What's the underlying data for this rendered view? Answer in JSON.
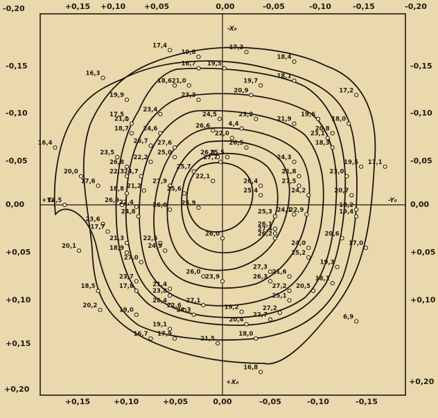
{
  "figure": {
    "x_ticks": [
      "+0,15",
      "+0,10",
      "+0,05",
      "0,00",
      "-0,05",
      "-0,10",
      "-0,15",
      "-0,20"
    ],
    "y_ticks": [
      "-0,20",
      "-0,15",
      "-0,10",
      "-0,05",
      "0,00",
      "+0,05",
      "+0,10",
      "+0,15",
      "+0,20"
    ],
    "axis_labels": {
      "x_top": "-X₀",
      "x_bottom": "+X₀",
      "y_left": "+Y₀",
      "y_right": "-Y₀"
    },
    "points": [
      {
        "label": "17,4",
        "x": 0.055,
        "y": -0.162
      },
      {
        "label": "19,8",
        "x": 0.025,
        "y": -0.155
      },
      {
        "label": "17,3",
        "x": -0.025,
        "y": -0.16
      },
      {
        "label": "18,4",
        "x": -0.075,
        "y": -0.15
      },
      {
        "label": "16,3",
        "x": 0.125,
        "y": -0.133
      },
      {
        "label": "16,7",
        "x": 0.025,
        "y": -0.143
      },
      {
        "label": "19,5",
        "x": -0.002,
        "y": -0.143
      },
      {
        "label": "19,7",
        "x": -0.04,
        "y": -0.125
      },
      {
        "label": "18,1",
        "x": -0.075,
        "y": -0.13
      },
      {
        "label": "17,2",
        "x": -0.14,
        "y": -0.115
      },
      {
        "label": "18,6",
        "x": 0.05,
        "y": -0.125
      },
      {
        "label": "21,0",
        "x": 0.035,
        "y": -0.125
      },
      {
        "label": "23,3",
        "x": 0.025,
        "y": -0.11
      },
      {
        "label": "20,9",
        "x": -0.03,
        "y": -0.115
      },
      {
        "label": "19,9",
        "x": 0.1,
        "y": -0.11
      },
      {
        "label": "17,5",
        "x": 0.1,
        "y": -0.09
      },
      {
        "label": "21,1",
        "x": 0.095,
        "y": -0.085
      },
      {
        "label": "23,4",
        "x": 0.065,
        "y": -0.095
      },
      {
        "label": "24,5",
        "x": 0.003,
        "y": -0.09
      },
      {
        "label": "23,2",
        "x": -0.035,
        "y": -0.09
      },
      {
        "label": "21,9",
        "x": -0.075,
        "y": -0.085
      },
      {
        "label": "19,6",
        "x": -0.1,
        "y": -0.09
      },
      {
        "label": "18,0",
        "x": -0.132,
        "y": -0.085
      },
      {
        "label": "18,7",
        "x": 0.095,
        "y": -0.075
      },
      {
        "label": "24,6",
        "x": 0.065,
        "y": -0.075
      },
      {
        "label": "26,6",
        "x": 0.01,
        "y": -0.078
      },
      {
        "label": "4,4",
        "x": -0.02,
        "y": -0.08
      },
      {
        "label": "20,8",
        "x": -0.115,
        "y": -0.075
      },
      {
        "label": "23,1",
        "x": -0.11,
        "y": -0.07
      },
      {
        "label": "26,7",
        "x": 0.075,
        "y": -0.062
      },
      {
        "label": "27,6",
        "x": 0.05,
        "y": -0.06
      },
      {
        "label": "25,0",
        "x": 0.05,
        "y": -0.05
      },
      {
        "label": "22,0",
        "x": -0.01,
        "y": -0.07
      },
      {
        "label": "26,5",
        "x": -0.025,
        "y": -0.06
      },
      {
        "label": "18,3",
        "x": -0.115,
        "y": -0.06
      },
      {
        "label": "26,8",
        "x": 0.005,
        "y": -0.05
      },
      {
        "label": "27,7",
        "x": 0.002,
        "y": -0.045
      },
      {
        "label": "25,5",
        "x": -0.005,
        "y": -0.05
      },
      {
        "label": "24,3",
        "x": -0.075,
        "y": -0.045
      },
      {
        "label": "16,4",
        "x": 0.175,
        "y": -0.06
      },
      {
        "label": "23,5",
        "x": 0.11,
        "y": -0.05
      },
      {
        "label": "22,2",
        "x": 0.075,
        "y": -0.045
      },
      {
        "label": "26,8",
        "x": 0.1,
        "y": -0.04
      },
      {
        "label": "22,3",
        "x": 0.1,
        "y": -0.03
      },
      {
        "label": "24,7",
        "x": 0.085,
        "y": -0.03
      },
      {
        "label": "25,7",
        "x": 0.03,
        "y": -0.035
      },
      {
        "label": "22,1",
        "x": 0.01,
        "y": -0.025
      },
      {
        "label": "19,5",
        "x": -0.145,
        "y": -0.04
      },
      {
        "label": "17,1",
        "x": -0.17,
        "y": -0.04
      },
      {
        "label": "20,0",
        "x": 0.148,
        "y": -0.03
      },
      {
        "label": "17,6",
        "x": 0.13,
        "y": -0.02
      },
      {
        "label": "27,9",
        "x": 0.055,
        "y": -0.02
      },
      {
        "label": "21,8",
        "x": -0.08,
        "y": -0.03
      },
      {
        "label": "23,0",
        "x": -0.13,
        "y": -0.03
      },
      {
        "label": "26,4",
        "x": -0.04,
        "y": -0.02
      },
      {
        "label": "27,5",
        "x": -0.08,
        "y": -0.02
      },
      {
        "label": "18,8",
        "x": 0.1,
        "y": -0.012
      },
      {
        "label": "21,2",
        "x": 0.082,
        "y": -0.015
      },
      {
        "label": "25,6",
        "x": 0.04,
        "y": -0.012
      },
      {
        "label": "25,4",
        "x": -0.04,
        "y": -0.01
      },
      {
        "label": "24,2",
        "x": -0.09,
        "y": -0.01
      },
      {
        "label": "20,7",
        "x": -0.135,
        "y": -0.01
      },
      {
        "label": "16,5",
        "x": 0.165,
        "y": 0.0
      },
      {
        "label": "26,9",
        "x": 0.105,
        "y": 0.0
      },
      {
        "label": "22,4",
        "x": 0.09,
        "y": 0.002
      },
      {
        "label": "24,8",
        "x": 0.088,
        "y": 0.012
      },
      {
        "label": "26,0",
        "x": 0.055,
        "y": 0.005
      },
      {
        "label": "25,9",
        "x": 0.025,
        "y": 0.003
      },
      {
        "label": "18,2",
        "x": -0.14,
        "y": 0.005
      },
      {
        "label": "19,4",
        "x": -0.14,
        "y": 0.012
      },
      {
        "label": "25,3",
        "x": -0.055,
        "y": 0.012
      },
      {
        "label": "24,1",
        "x": -0.075,
        "y": 0.01
      },
      {
        "label": "22,9",
        "x": -0.088,
        "y": 0.01
      },
      {
        "label": "23,6",
        "x": 0.125,
        "y": 0.02
      },
      {
        "label": "17,7",
        "x": 0.12,
        "y": 0.028
      },
      {
        "label": "26,1",
        "x": -0.055,
        "y": 0.025
      },
      {
        "label": "27,4",
        "x": -0.055,
        "y": 0.03
      },
      {
        "label": "26,0",
        "x": 0.0,
        "y": 0.035
      },
      {
        "label": "26,2",
        "x": -0.055,
        "y": 0.035
      },
      {
        "label": "20,6",
        "x": -0.125,
        "y": 0.035
      },
      {
        "label": "21,3",
        "x": 0.1,
        "y": 0.04
      },
      {
        "label": "22,5",
        "x": 0.065,
        "y": 0.04
      },
      {
        "label": "24,9",
        "x": 0.06,
        "y": 0.048
      },
      {
        "label": "17,0",
        "x": -0.15,
        "y": 0.045
      },
      {
        "label": "20,1",
        "x": 0.15,
        "y": 0.048
      },
      {
        "label": "18,9",
        "x": 0.1,
        "y": 0.05
      },
      {
        "label": "27,0",
        "x": 0.085,
        "y": 0.06
      },
      {
        "label": "24,0",
        "x": -0.09,
        "y": 0.045
      },
      {
        "label": "25,2",
        "x": -0.09,
        "y": 0.055
      },
      {
        "label": "27,3",
        "x": -0.05,
        "y": 0.07
      },
      {
        "label": "19,3",
        "x": -0.12,
        "y": 0.065
      },
      {
        "label": "21,6",
        "x": -0.07,
        "y": 0.075
      },
      {
        "label": "26,3",
        "x": -0.05,
        "y": 0.08
      },
      {
        "label": "26,0",
        "x": 0.02,
        "y": 0.075
      },
      {
        "label": "23,9",
        "x": 0.0,
        "y": 0.08
      },
      {
        "label": "18,5",
        "x": 0.13,
        "y": 0.09
      },
      {
        "label": "23,7",
        "x": 0.09,
        "y": 0.08
      },
      {
        "label": "17,8",
        "x": 0.09,
        "y": 0.09
      },
      {
        "label": "21,4",
        "x": 0.055,
        "y": 0.088
      },
      {
        "label": "23,8",
        "x": 0.055,
        "y": 0.095
      },
      {
        "label": "26,4",
        "x": 0.055,
        "y": 0.105
      },
      {
        "label": "27,2",
        "x": -0.07,
        "y": 0.09
      },
      {
        "label": "20,5",
        "x": -0.095,
        "y": 0.09
      },
      {
        "label": "25,1",
        "x": -0.07,
        "y": 0.1
      },
      {
        "label": "18,1",
        "x": -0.115,
        "y": 0.082
      },
      {
        "label": "22,6",
        "x": 0.04,
        "y": 0.11
      },
      {
        "label": "27,1",
        "x": 0.02,
        "y": 0.105
      },
      {
        "label": "20,3",
        "x": 0.03,
        "y": 0.115
      },
      {
        "label": "19,2",
        "x": -0.02,
        "y": 0.112
      },
      {
        "label": "27,2",
        "x": -0.06,
        "y": 0.113
      },
      {
        "label": "20,2",
        "x": 0.128,
        "y": 0.11
      },
      {
        "label": "19,0",
        "x": 0.09,
        "y": 0.115
      },
      {
        "label": "22,7",
        "x": -0.05,
        "y": 0.12
      },
      {
        "label": "20,4",
        "x": -0.025,
        "y": 0.125
      },
      {
        "label": "6,9",
        "x": -0.14,
        "y": 0.122
      },
      {
        "label": "19,1",
        "x": 0.055,
        "y": 0.13
      },
      {
        "label": "17,9",
        "x": 0.05,
        "y": 0.14
      },
      {
        "label": "18,0",
        "x": -0.035,
        "y": 0.14
      },
      {
        "label": "16,7",
        "x": 0.075,
        "y": 0.14
      },
      {
        "label": "21,5",
        "x": 0.005,
        "y": 0.145
      },
      {
        "label": "16,8",
        "x": -0.04,
        "y": 0.175
      }
    ]
  }
}
